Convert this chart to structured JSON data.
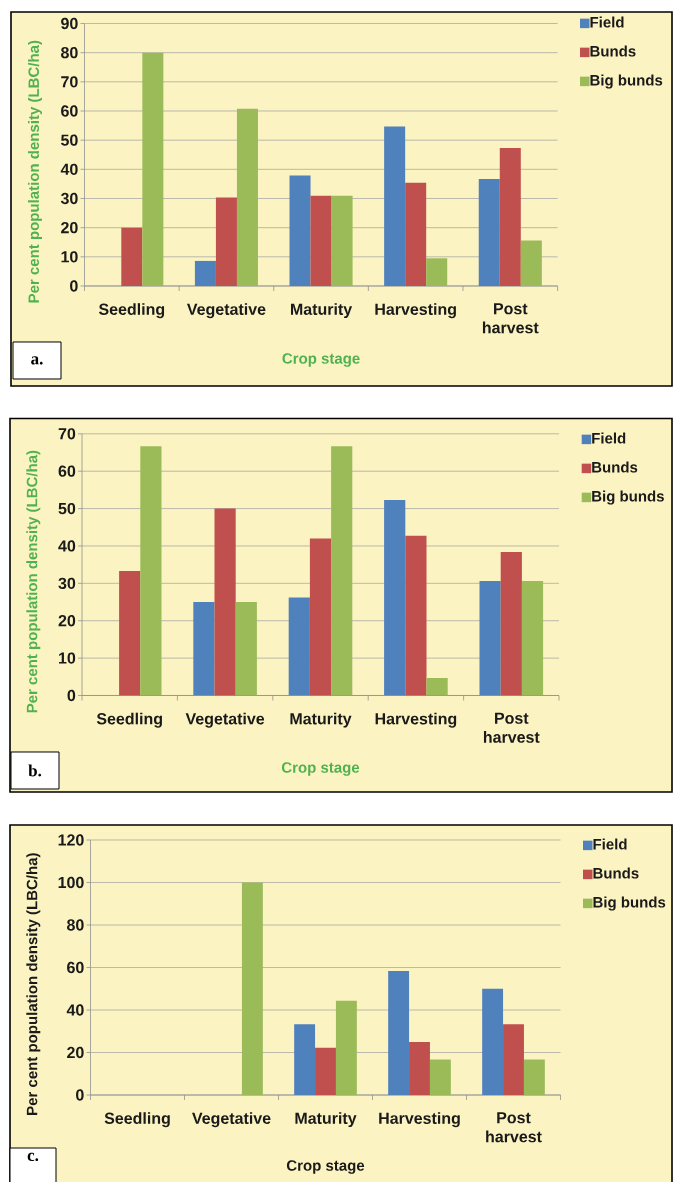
{
  "chart_data": [
    {
      "type": "bar",
      "categories": [
        "Seedling",
        "Vegetative",
        "Maturity",
        "Harvesting",
        "Post harvest"
      ],
      "series": [
        {
          "name": "Field",
          "color": "#4f81bd",
          "values": [
            0,
            8.6,
            37.9,
            54.7,
            36.7
          ]
        },
        {
          "name": "Bunds",
          "color": "#c0504d",
          "values": [
            20,
            30.3,
            30.9,
            35.4,
            47.3
          ]
        },
        {
          "name": "Big bunds",
          "color": "#9bbb59",
          "values": [
            80,
            60.8,
            30.9,
            9.5,
            15.6
          ]
        }
      ],
      "xlabel": "Crop stage",
      "ylabel": "Per cent population density (LBC/ha)",
      "ylim": [
        0,
        90
      ],
      "yticks": [
        0,
        10,
        20,
        30,
        40,
        50,
        60,
        70,
        80,
        90
      ],
      "grid": "y",
      "legend": "right",
      "annotations": [
        "a."
      ]
    },
    {
      "type": "bar",
      "categories": [
        "Seedling",
        "Vegetative",
        "Maturity",
        "Harvesting",
        "Post harvest"
      ],
      "series": [
        {
          "name": "Field",
          "color": "#4f81bd",
          "values": [
            0,
            25,
            26.2,
            52.3,
            30.6
          ]
        },
        {
          "name": "Bunds",
          "color": "#c0504d",
          "values": [
            33.3,
            50,
            42,
            42.7,
            38.4
          ]
        },
        {
          "name": "Big bunds",
          "color": "#9bbb59",
          "values": [
            66.7,
            25,
            66.7,
            4.7,
            30.6
          ]
        }
      ],
      "xlabel": "Crop stage",
      "ylabel": "Per cent population density (LBC/ha)",
      "ylim": [
        0,
        70
      ],
      "yticks": [
        0,
        10,
        20,
        30,
        40,
        50,
        60,
        70
      ],
      "grid": "y",
      "legend": "right",
      "annotations": [
        "b."
      ]
    },
    {
      "type": "bar",
      "categories": [
        "Seedling",
        "Vegetative",
        "Maturity",
        "Harvesting",
        "Post harvest"
      ],
      "series": [
        {
          "name": "Field",
          "color": "#4f81bd",
          "values": [
            0,
            0,
            33.3,
            58.3,
            50
          ]
        },
        {
          "name": "Bunds",
          "color": "#c0504d",
          "values": [
            0,
            0,
            22.2,
            25,
            33.3
          ]
        },
        {
          "name": "Big bunds",
          "color": "#9bbb59",
          "values": [
            0,
            100,
            44.4,
            16.7,
            16.7
          ]
        }
      ],
      "xlabel": "Crop stage",
      "ylabel": "Per cent population density (LBC/ha)",
      "ylim": [
        0,
        120
      ],
      "yticks": [
        0,
        20,
        40,
        60,
        80,
        100,
        120
      ],
      "grid": "y",
      "legend": "right",
      "annotations": [
        "c."
      ]
    }
  ]
}
